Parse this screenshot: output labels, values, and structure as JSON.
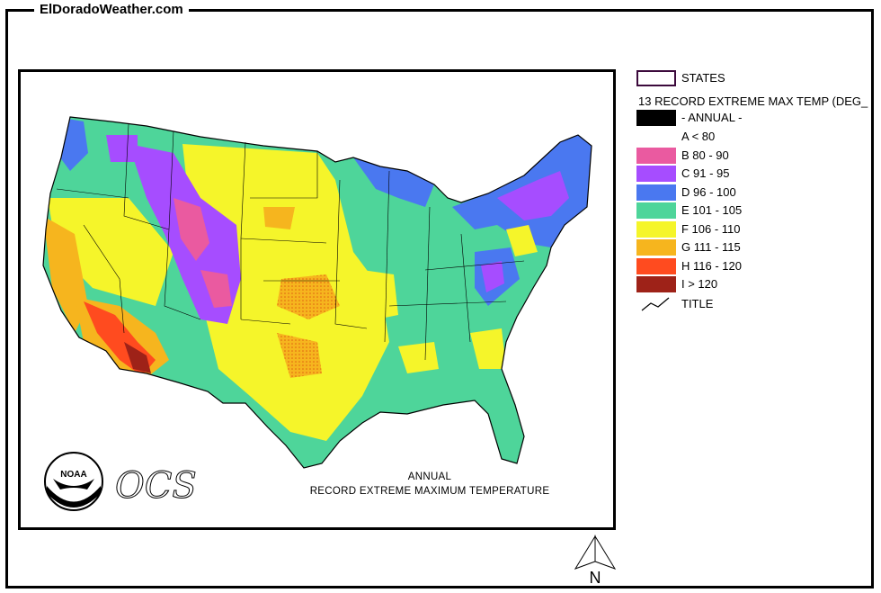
{
  "site": {
    "title": "ElDoradoWeather.com"
  },
  "map": {
    "caption_line1": "ANNUAL",
    "caption_line2": "RECORD EXTREME MAXIMUM TEMPERATURE",
    "logo_text": "NOAA",
    "agency_text": "OCS",
    "north_label": "N"
  },
  "legend": {
    "states_label": "STATES",
    "layer_title": "13 RECORD EXTREME MAX TEMP (DEG_",
    "annual_label": "- ANNUAL -",
    "classes": [
      {
        "label": "A < 80",
        "color": "#ffffff"
      },
      {
        "label": "B 80 - 90",
        "color": "#ea5aa0"
      },
      {
        "label": "C 91 - 95",
        "color": "#a64dff"
      },
      {
        "label": "D 96 - 100",
        "color": "#4a78f0"
      },
      {
        "label": "E 101 - 105",
        "color": "#4ed59a"
      },
      {
        "label": "F 106 - 110",
        "color": "#f5f52a"
      },
      {
        "label": "G 111 - 115",
        "color": "#f6b51e"
      },
      {
        "label": "H 116 - 120",
        "color": "#ff4b1f"
      },
      {
        "label": "I > 120",
        "color": "#9e2218"
      }
    ],
    "title_label": "TITLE",
    "states_outline_color": "#3c0a3c"
  }
}
